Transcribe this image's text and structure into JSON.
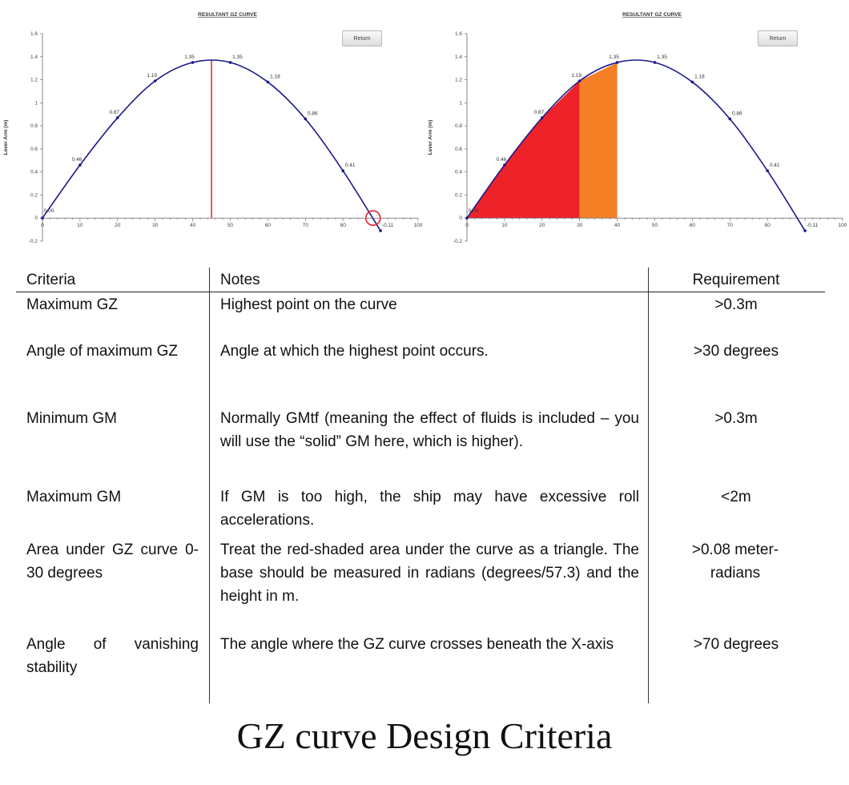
{
  "chart_data": [
    {
      "type": "line",
      "title": "RESULTANT GZ CURVE",
      "ylabel": "Lever Arm (m)",
      "xlabel": "",
      "xlim": [
        0,
        100
      ],
      "ylim": [
        -0.2,
        1.6
      ],
      "x_ticks": [
        0,
        10,
        20,
        30,
        40,
        50,
        60,
        70,
        80,
        90,
        100
      ],
      "x_tick_labels": [
        "0",
        "10",
        "20",
        "30",
        "40",
        "50",
        "60",
        "70",
        "80",
        "",
        "100"
      ],
      "y_ticks": [
        -0.2,
        0,
        0.2,
        0.4,
        0.6,
        0.8,
        1,
        1.2,
        1.4,
        1.6
      ],
      "series": [
        {
          "x": [
            0,
            10,
            20,
            30,
            40,
            50,
            60,
            70,
            80,
            90
          ],
          "y": [
            0,
            0.46,
            0.87,
            1.19,
            1.35,
            1.35,
            1.18,
            0.86,
            0.41,
            -0.11
          ],
          "labels": [
            "0.00",
            "0.46",
            "0.87",
            "1.19",
            "1.35",
            "1.35",
            "1.18",
            "0.86",
            "0.41",
            "-0.11"
          ],
          "color": "#1a1a8c"
        }
      ],
      "annotations": [
        {
          "type": "vertical_line",
          "x": 45,
          "color": "#e8222a"
        },
        {
          "type": "circle",
          "x": 88,
          "y": 0,
          "color": "#e8222a"
        }
      ],
      "button_label": "Return"
    },
    {
      "type": "area",
      "title": "RESULTANT GZ CURVE",
      "ylabel": "Lever Arm (m)",
      "xlabel": "",
      "xlim": [
        0,
        100
      ],
      "ylim": [
        -0.2,
        1.6
      ],
      "x_ticks": [
        0,
        10,
        20,
        30,
        40,
        50,
        60,
        70,
        80,
        90,
        100
      ],
      "x_tick_labels": [
        "0",
        "10",
        "20",
        "30",
        "40",
        "50",
        "60",
        "70",
        "80",
        "",
        "100"
      ],
      "y_ticks": [
        -0.2,
        0,
        0.2,
        0.4,
        0.6,
        0.8,
        1,
        1.2,
        1.4,
        1.6
      ],
      "series": [
        {
          "x": [
            0,
            10,
            20,
            30,
            40,
            50,
            60,
            70,
            80,
            90
          ],
          "y": [
            0,
            0.46,
            0.87,
            1.19,
            1.35,
            1.35,
            1.18,
            0.86,
            0.41,
            -0.11
          ],
          "labels": [
            "0.00",
            "0.46",
            "0.87",
            "1.19",
            "1.35",
            "1.35",
            "1.18",
            "0.86",
            "0.41",
            "-0.11"
          ],
          "color": "#1a1a8c"
        }
      ],
      "shaded_regions": [
        {
          "x_from": 0,
          "x_to": 30,
          "color": "#ee2229"
        },
        {
          "x_from": 30,
          "x_to": 40,
          "color": "#f58025"
        }
      ],
      "button_label": "Return"
    }
  ],
  "table": {
    "headers": [
      "Criteria",
      "Notes",
      "Requirement"
    ],
    "rows": [
      {
        "criteria": "Maximum GZ",
        "notes": "Highest point on the curve",
        "requirement": ">0.3m"
      },
      {
        "criteria": "Angle of maximum GZ",
        "notes": "Angle at which the highest point occurs.",
        "requirement": ">30 degrees"
      },
      {
        "criteria": "Minimum GM",
        "notes": "Normally GMtf (meaning the effect of fluids is included – you will use the “solid” GM here, which is higher).",
        "requirement": ">0.3m"
      },
      {
        "criteria": "Maximum GM",
        "notes": "If GM is too high, the ship may have excessive roll accelerations.",
        "requirement": "<2m"
      },
      {
        "criteria": "Area under GZ curve 0-30 degrees",
        "notes": "Treat the red-shaded area under the curve as a triangle. The base should be measured in radians (degrees/57.3) and the height in m.",
        "requirement": ">0.08 meter-radians"
      },
      {
        "criteria": "Angle of vanishing stability",
        "notes": "The angle where the GZ curve crosses beneath the X-axis",
        "requirement": ">70 degrees"
      }
    ]
  },
  "caption": "GZ curve Design Criteria"
}
